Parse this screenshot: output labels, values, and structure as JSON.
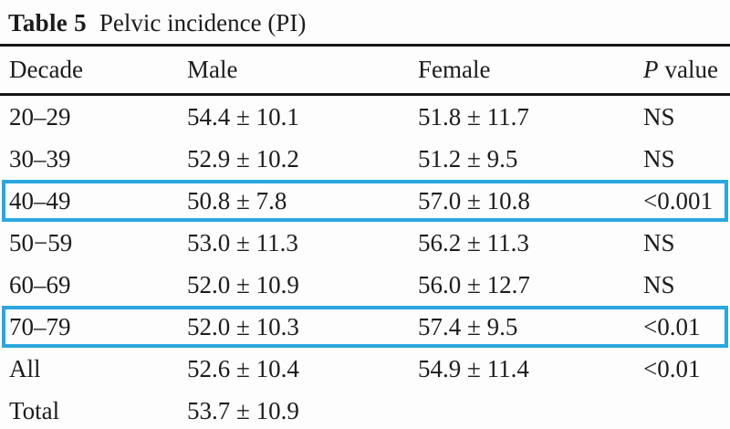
{
  "title": {
    "label": "Table 5",
    "caption": "Pelvic incidence (PI)"
  },
  "table": {
    "header": {
      "decade": "Decade",
      "male": "Male",
      "female": "Female",
      "p_symbol": "P",
      "p_word": "value"
    },
    "rows": [
      {
        "decade": "20–29",
        "male": "54.4 ± 10.1",
        "female": "51.8 ± 11.7",
        "p": "NS",
        "highlighted": false
      },
      {
        "decade": "30–39",
        "male": "52.9 ± 10.2",
        "female": "51.2 ± 9.5",
        "p": "NS",
        "highlighted": false
      },
      {
        "decade": "40–49",
        "male": "50.8 ± 7.8",
        "female": "57.0 ± 10.8",
        "p": "<0.001",
        "highlighted": true
      },
      {
        "decade": "50−59",
        "male": "53.0 ± 11.3",
        "female": "56.2 ± 11.3",
        "p": "NS",
        "highlighted": false
      },
      {
        "decade": "60–69",
        "male": "52.0 ± 10.9",
        "female": "56.0 ± 12.7",
        "p": "NS",
        "highlighted": false
      },
      {
        "decade": "70–79",
        "male": "52.0 ± 10.3",
        "female": "57.4 ± 9.5",
        "p": "<0.01",
        "highlighted": true
      },
      {
        "decade": "All",
        "male": "52.6 ± 10.4",
        "female": "54.9 ± 11.4",
        "p": "<0.01",
        "highlighted": false
      },
      {
        "decade": "Total",
        "male": "53.7 ± 10.9",
        "female": "",
        "p": "",
        "highlighted": false
      }
    ]
  },
  "colors": {
    "highlight_border": "#2aa7df",
    "rule": "#151515",
    "text": "#1c1c1c",
    "background": "#fdfdfd"
  }
}
